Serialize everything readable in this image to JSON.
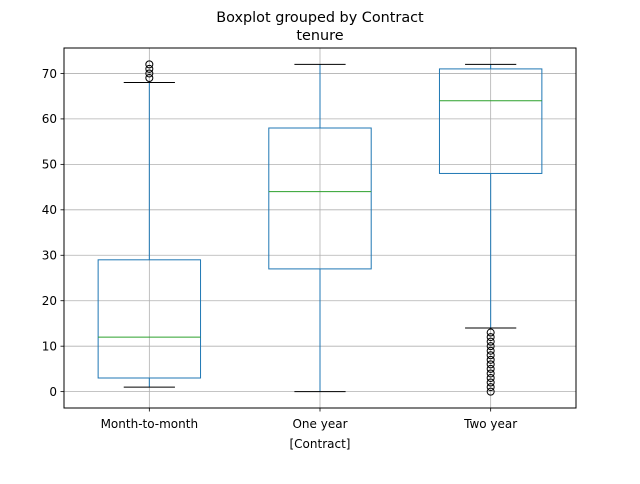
{
  "chart_data": {
    "type": "boxplot",
    "title": "Boxplot grouped by Contract",
    "subtitle": "tenure",
    "xlabel": "[Contract]",
    "ylabel": "",
    "ylim": [
      -3.6,
      75.6
    ],
    "yticks": [
      0,
      10,
      20,
      30,
      40,
      50,
      60,
      70
    ],
    "grid": true,
    "categories": [
      "Month-to-month",
      "One year",
      "Two year"
    ],
    "boxes": [
      {
        "category": "Month-to-month",
        "whisker_low": 1,
        "q1": 3,
        "median": 12,
        "q3": 29,
        "whisker_high": 68,
        "outliers": [
          69,
          70,
          71,
          72
        ]
      },
      {
        "category": "One year",
        "whisker_low": 0,
        "q1": 27,
        "median": 44,
        "q3": 58,
        "whisker_high": 72,
        "outliers": []
      },
      {
        "category": "Two year",
        "whisker_low": 14,
        "q1": 48,
        "median": 64,
        "q3": 71,
        "whisker_high": 72,
        "outliers": [
          0,
          1,
          2,
          3,
          4,
          5,
          6,
          7,
          8,
          9,
          10,
          11,
          12,
          13
        ]
      }
    ],
    "colors": {
      "box": "#1f77b4",
      "median": "#2ca02c",
      "whisker_cap": "#000000",
      "outlier": "#000000",
      "grid": "#b0b0b0"
    }
  }
}
